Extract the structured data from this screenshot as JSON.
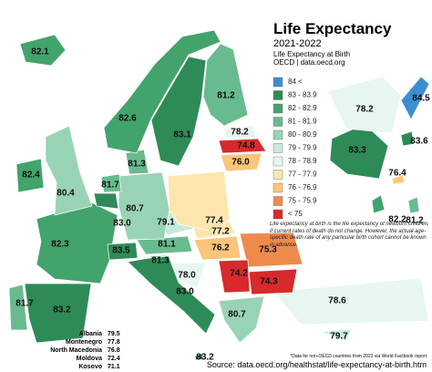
{
  "header": {
    "title": "Life Expectancy",
    "years": "2021-2022",
    "subtitle": "Life Expectancy at Birth",
    "source_line": "OECD | data.oecd.org"
  },
  "legend": [
    {
      "label": "84 <",
      "color": "#3a8fd0"
    },
    {
      "label": "83 - 83.9",
      "color": "#2e8b57"
    },
    {
      "label": "82 - 82.9",
      "color": "#43a36c"
    },
    {
      "label": "81 - 81.9",
      "color": "#68bb8e"
    },
    {
      "label": "80 - 80.9",
      "color": "#99d3b6"
    },
    {
      "label": "79 - 79.9",
      "color": "#c8eadd"
    },
    {
      "label": "78 - 78.9",
      "color": "#e8f6f1"
    },
    {
      "label": "77 - 77.9",
      "color": "#fde6ae"
    },
    {
      "label": "76 - 76.9",
      "color": "#fbc57a"
    },
    {
      "label": "75 - 75.9",
      "color": "#ef8a4d"
    },
    {
      "label": "< 75",
      "color": "#d72a2c"
    }
  ],
  "regions": [
    {
      "value": "82.1",
      "color": "#43a36c"
    },
    {
      "value": "82.6",
      "color": "#43a36c"
    },
    {
      "value": "83.1",
      "color": "#2e8b57"
    },
    {
      "value": "81.2",
      "color": "#68bb8e"
    },
    {
      "value": "78.2",
      "color": "#e8f6f1"
    },
    {
      "value": "74.8",
      "color": "#d72a2c"
    },
    {
      "value": "76.0",
      "color": "#fbc57a"
    },
    {
      "value": "82.4",
      "color": "#43a36c"
    },
    {
      "value": "80.4",
      "color": "#99d3b6"
    },
    {
      "value": "81.3",
      "color": "#68bb8e"
    },
    {
      "value": "81.7",
      "color": "#68bb8e"
    },
    {
      "value": "83.0",
      "color": "#2e8b57"
    },
    {
      "value": "80.7",
      "color": "#99d3b6"
    },
    {
      "value": "77.4",
      "color": "#fde6ae"
    },
    {
      "value": "79.1",
      "color": "#c8eadd"
    },
    {
      "value": "77.2",
      "color": "#fde6ae"
    },
    {
      "value": "81.1",
      "color": "#68bb8e"
    },
    {
      "value": "76.2",
      "color": "#fbc57a"
    },
    {
      "value": "83.5",
      "color": "#2e8b57"
    },
    {
      "value": "82.3",
      "color": "#43a36c"
    },
    {
      "value": "81.7",
      "color": "#68bb8e"
    },
    {
      "value": "83.2",
      "color": "#2e8b57"
    },
    {
      "value": "83.0",
      "color": "#2e8b57"
    },
    {
      "value": "81.3",
      "color": "#68bb8e"
    },
    {
      "value": "78.0",
      "color": "#e8f6f1"
    },
    {
      "value": "74.2",
      "color": "#d72a2c"
    },
    {
      "value": "75.3",
      "color": "#ef8a4d"
    },
    {
      "value": "74.3",
      "color": "#d72a2c"
    },
    {
      "value": "80.7",
      "color": "#99d3b6"
    },
    {
      "value": "78.6",
      "color": "#e8f6f1"
    },
    {
      "value": "79.7",
      "color": "#c8eadd"
    },
    {
      "value": "83.2",
      "color": "#2e8b57"
    },
    {
      "value": "78.2",
      "color": "#e8f6f1"
    },
    {
      "value": "84.5",
      "color": "#3a8fd0"
    },
    {
      "value": "83.6",
      "color": "#2e8b57"
    },
    {
      "value": "83.3",
      "color": "#2e8b57"
    },
    {
      "value": "76.4",
      "color": "#fbc57a"
    },
    {
      "value": "82.2",
      "color": "#43a36c"
    },
    {
      "value": "81.2",
      "color": "#68bb8e"
    }
  ],
  "others": [
    {
      "name": "Albania",
      "value": "79.5"
    },
    {
      "name": "Montenegro",
      "value": "77.8"
    },
    {
      "name": "North Macedonia",
      "value": "76.8"
    },
    {
      "name": "Moldova",
      "value": "72.4"
    },
    {
      "name": "Kosovo",
      "value": "71.1"
    }
  ],
  "note": "Life expectancy at birth is the life expectancy of newborn children, if current rates of death do not change. However, the actual age-specific death rate of any particular birth cohort cannot be known in advance.",
  "footnote": "*Data for non-OECD countries from 2022 via World Factbook report",
  "source": "Source: data.oecd.org/healthstat/life-expectancy-at-birth.htm"
}
